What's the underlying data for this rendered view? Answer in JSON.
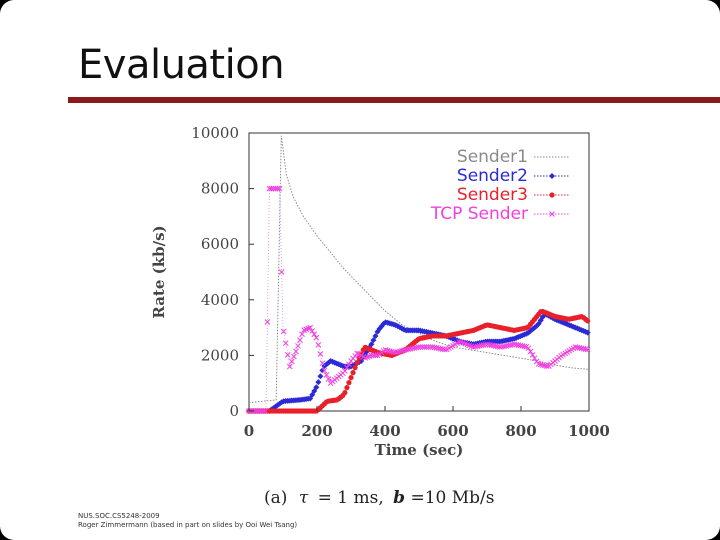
{
  "slide": {
    "title": "Evaluation",
    "footer_line1": "NUS.SOC.CS5248-2009",
    "footer_line2": "Roger Zimmermann (based in part on slides by Ooi Wei Tsang)"
  },
  "chart_data": {
    "type": "line",
    "title": "",
    "xlabel": "Time (sec)",
    "ylabel": "Rate (kb/s)",
    "xlim": [
      0,
      1000
    ],
    "ylim": [
      0,
      10000
    ],
    "xticks": [
      0,
      200,
      400,
      600,
      800,
      1000
    ],
    "yticks": [
      0,
      2000,
      4000,
      6000,
      8000,
      10000
    ],
    "caption_prefix": "(a)",
    "caption_tau": "τ",
    "caption_mid": "= 1 ms,",
    "caption_b": "b",
    "caption_end": "=10 Mb/s",
    "legend_position": "top-right",
    "series": [
      {
        "name": "Sender1",
        "color": "#8a8a8a",
        "style": "dotted-line",
        "points": [
          [
            0,
            300
          ],
          [
            80,
            400
          ],
          [
            95,
            9900
          ],
          [
            110,
            8500
          ],
          [
            130,
            7700
          ],
          [
            160,
            7000
          ],
          [
            200,
            6300
          ],
          [
            240,
            5700
          ],
          [
            280,
            5100
          ],
          [
            320,
            4600
          ],
          [
            360,
            4100
          ],
          [
            400,
            3600
          ],
          [
            450,
            3100
          ],
          [
            500,
            2800
          ],
          [
            550,
            2500
          ],
          [
            600,
            2300
          ],
          [
            650,
            2200
          ],
          [
            700,
            2100
          ],
          [
            750,
            2000
          ],
          [
            800,
            1900
          ],
          [
            850,
            1800
          ],
          [
            900,
            1650
          ],
          [
            950,
            1550
          ],
          [
            1000,
            1500
          ]
        ]
      },
      {
        "name": "Sender2",
        "color": "#2a2ad8",
        "style": "diamond-markers",
        "points": [
          [
            0,
            0
          ],
          [
            60,
            0
          ],
          [
            100,
            350
          ],
          [
            150,
            400
          ],
          [
            180,
            450
          ],
          [
            200,
            900
          ],
          [
            220,
            1600
          ],
          [
            240,
            1800
          ],
          [
            260,
            1700
          ],
          [
            280,
            1600
          ],
          [
            300,
            1600
          ],
          [
            330,
            1800
          ],
          [
            360,
            2400
          ],
          [
            380,
            2900
          ],
          [
            400,
            3200
          ],
          [
            430,
            3100
          ],
          [
            460,
            2900
          ],
          [
            500,
            2900
          ],
          [
            540,
            2800
          ],
          [
            580,
            2700
          ],
          [
            620,
            2500
          ],
          [
            660,
            2400
          ],
          [
            700,
            2500
          ],
          [
            740,
            2500
          ],
          [
            780,
            2600
          ],
          [
            820,
            2800
          ],
          [
            850,
            3100
          ],
          [
            870,
            3500
          ],
          [
            900,
            3300
          ],
          [
            940,
            3100
          ],
          [
            980,
            2900
          ],
          [
            1000,
            2800
          ]
        ]
      },
      {
        "name": "Sender3",
        "color": "#e8202a",
        "style": "circle-markers",
        "points": [
          [
            0,
            0
          ],
          [
            60,
            0
          ],
          [
            200,
            0
          ],
          [
            230,
            350
          ],
          [
            260,
            400
          ],
          [
            280,
            600
          ],
          [
            300,
            1200
          ],
          [
            320,
            1800
          ],
          [
            340,
            2300
          ],
          [
            380,
            2100
          ],
          [
            420,
            2000
          ],
          [
            460,
            2200
          ],
          [
            500,
            2600
          ],
          [
            540,
            2700
          ],
          [
            580,
            2700
          ],
          [
            620,
            2800
          ],
          [
            660,
            2900
          ],
          [
            700,
            3100
          ],
          [
            740,
            3000
          ],
          [
            780,
            2900
          ],
          [
            820,
            3000
          ],
          [
            860,
            3600
          ],
          [
            900,
            3400
          ],
          [
            940,
            3300
          ],
          [
            980,
            3400
          ],
          [
            1000,
            3200
          ]
        ]
      },
      {
        "name": "TCP Sender",
        "color": "#f040e0",
        "style": "x-markers",
        "points": [
          [
            0,
            0
          ],
          [
            50,
            0
          ],
          [
            60,
            8000
          ],
          [
            90,
            8000
          ],
          [
            100,
            3000
          ],
          [
            120,
            1600
          ],
          [
            140,
            2200
          ],
          [
            160,
            2900
          ],
          [
            180,
            3000
          ],
          [
            200,
            2600
          ],
          [
            220,
            1500
          ],
          [
            240,
            1000
          ],
          [
            260,
            1200
          ],
          [
            280,
            1400
          ],
          [
            300,
            1800
          ],
          [
            320,
            2100
          ],
          [
            340,
            1900
          ],
          [
            360,
            2000
          ],
          [
            380,
            2000
          ],
          [
            400,
            2200
          ],
          [
            430,
            2100
          ],
          [
            460,
            2200
          ],
          [
            500,
            2300
          ],
          [
            540,
            2300
          ],
          [
            580,
            2200
          ],
          [
            620,
            2500
          ],
          [
            660,
            2300
          ],
          [
            700,
            2400
          ],
          [
            740,
            2300
          ],
          [
            780,
            2400
          ],
          [
            820,
            2300
          ],
          [
            850,
            1700
          ],
          [
            880,
            1600
          ],
          [
            920,
            2000
          ],
          [
            960,
            2300
          ],
          [
            1000,
            2200
          ]
        ]
      }
    ]
  }
}
